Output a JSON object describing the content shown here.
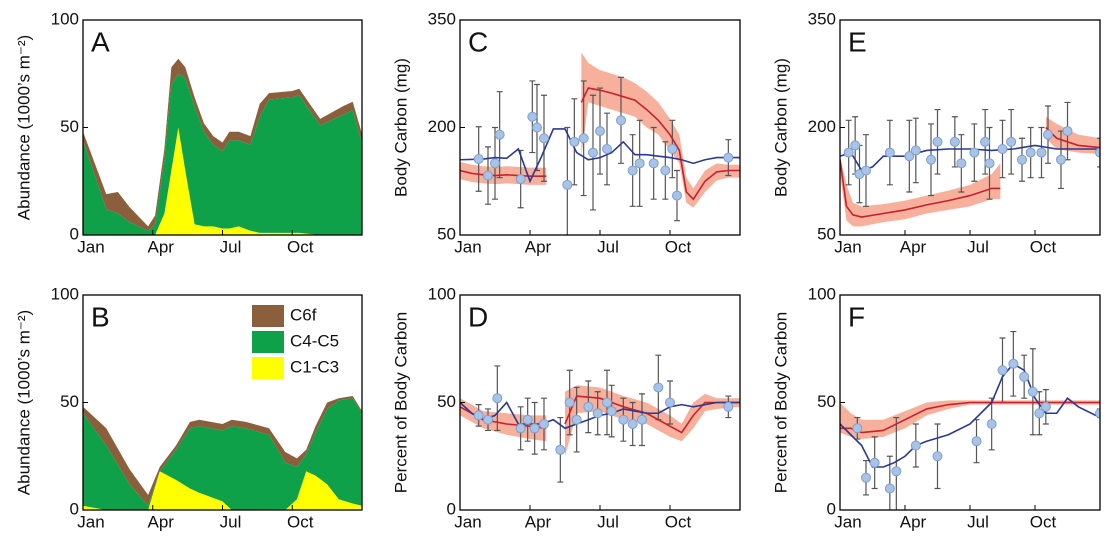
{
  "chart_data": [
    {
      "type": "area",
      "label": "A",
      "ylabel": "Abundance (1000’s m⁻²)",
      "xlim": [
        0,
        12
      ],
      "ylim": [
        0,
        100
      ],
      "yticks": [
        0,
        50,
        100
      ],
      "xticks": [
        {
          "value": 0,
          "label": "Jan"
        },
        {
          "value": 3,
          "label": "Apr"
        },
        {
          "value": 6,
          "label": "Jul"
        },
        {
          "value": 9,
          "label": "Oct"
        }
      ],
      "x": [
        0,
        1,
        1.5,
        2,
        2.8,
        3.1,
        3.5,
        3.8,
        4.1,
        4.4,
        4.8,
        5.2,
        5.6,
        6,
        6.3,
        6.7,
        7.2,
        7.6,
        8,
        9,
        9.3,
        10.2,
        11.2,
        11.6,
        12
      ],
      "series": [
        {
          "name": "C1-C3",
          "color": "#ffff00",
          "values": [
            0,
            0,
            0,
            0,
            0,
            0,
            10,
            30,
            50,
            30,
            5,
            4,
            4,
            3,
            3,
            4,
            2,
            1,
            1,
            1,
            1,
            0,
            0,
            0,
            0
          ]
        },
        {
          "name": "C4-C5",
          "color": "#0fa04a",
          "values": [
            44,
            12,
            10,
            6,
            2,
            5,
            25,
            40,
            25,
            43,
            55,
            44,
            38,
            36,
            41,
            40,
            40,
            54,
            62,
            63,
            64,
            51,
            56,
            58,
            43
          ]
        },
        {
          "name": "C6f",
          "color": "#8b5e3c",
          "values": [
            4,
            7,
            10,
            7,
            2,
            4,
            5,
            8,
            7,
            5,
            4,
            4,
            4,
            4,
            4,
            4,
            4,
            6,
            3,
            3,
            3,
            3,
            4,
            4,
            4
          ]
        }
      ]
    },
    {
      "type": "area",
      "label": "B",
      "ylabel": "Abundance (1000’s m⁻²)",
      "xlim": [
        0,
        12
      ],
      "ylim": [
        0,
        100
      ],
      "yticks": [
        0,
        50,
        100
      ],
      "xticks": [
        {
          "value": 0,
          "label": "Jan"
        },
        {
          "value": 3,
          "label": "Apr"
        },
        {
          "value": 6,
          "label": "Jul"
        },
        {
          "value": 9,
          "label": "Oct"
        }
      ],
      "legend": "upper right",
      "x": [
        0,
        1,
        2,
        2.8,
        3.3,
        4,
        4.6,
        5,
        6,
        6.4,
        7,
        8,
        8.7,
        9.2,
        9.6,
        10,
        10.5,
        11,
        11.6,
        12
      ],
      "series": [
        {
          "name": "C1-C3",
          "color": "#ffff00",
          "values": [
            2,
            0,
            0,
            0,
            18,
            14,
            10,
            8,
            4,
            0,
            0,
            0,
            0,
            5,
            18,
            16,
            12,
            5,
            3,
            2
          ]
        },
        {
          "name": "C4-C5",
          "color": "#0fa04a",
          "values": [
            43,
            30,
            12,
            2,
            0,
            14,
            28,
            31,
            33,
            39,
            38,
            35,
            22,
            15,
            8,
            20,
            35,
            46,
            49,
            43
          ]
        },
        {
          "name": "C6f",
          "color": "#8b5e3c",
          "values": [
            3,
            8,
            7,
            5,
            2,
            2,
            3,
            3,
            3,
            3,
            3,
            3,
            5,
            4,
            2,
            3,
            3,
            1,
            1,
            1
          ]
        }
      ]
    },
    {
      "type": "line",
      "label": "C",
      "ylabel": "Body Carbon (mg)",
      "xlim": [
        0,
        12
      ],
      "ylim": [
        50,
        350
      ],
      "yticks": [
        50,
        200,
        350
      ],
      "xticks": [
        {
          "value": 0,
          "label": "Jan"
        },
        {
          "value": 3,
          "label": "Apr"
        },
        {
          "value": 6,
          "label": "Jul"
        },
        {
          "value": 9,
          "label": "Oct"
        }
      ],
      "series": [
        {
          "color": "#c8202f",
          "band_color": "#f6b09c",
          "x": [
            0,
            0.5,
            1,
            1.5,
            2,
            2.5,
            3,
            3.5,
            3.7,
            4.2,
            5.2,
            5.5,
            6,
            6.5,
            7,
            7.5,
            8,
            8.5,
            9,
            9.4,
            9.7,
            10,
            10.5,
            11,
            11.5,
            12
          ],
          "values": [
            140,
            136,
            134,
            133,
            134,
            133,
            132,
            132,
            132,
            null,
            235,
            255,
            252,
            248,
            243,
            238,
            225,
            210,
            190,
            168,
            110,
            100,
            125,
            138,
            140,
            140
          ],
          "upper": [
            152,
            148,
            146,
            145,
            146,
            145,
            144,
            144,
            144,
            null,
            305,
            290,
            280,
            275,
            270,
            262,
            250,
            235,
            212,
            190,
            130,
            115,
            140,
            150,
            148,
            148
          ],
          "lower": [
            128,
            124,
            122,
            121,
            122,
            121,
            120,
            120,
            120,
            null,
            160,
            235,
            230,
            225,
            220,
            215,
            200,
            190,
            168,
            150,
            95,
            88,
            110,
            126,
            130,
            130
          ]
        },
        {
          "color": "#2b3990",
          "x": [
            0,
            1,
            1.5,
            2,
            2.5,
            3,
            3.5,
            4,
            4.5,
            5,
            5.5,
            6,
            6.5,
            7,
            7.5,
            8,
            8.5,
            9,
            9.5,
            10,
            10.5,
            11,
            12
          ],
          "values": [
            155,
            156,
            158,
            157,
            170,
            125,
            160,
            198,
            198,
            165,
            155,
            158,
            165,
            180,
            162,
            162,
            160,
            158,
            155,
            150,
            155,
            158,
            158
          ]
        }
      ],
      "points": {
        "color": "#a9c3e6",
        "x": [
          0.8,
          1.2,
          1.5,
          1.7,
          2.6,
          3.1,
          3.3,
          3.6,
          4.6,
          4.9,
          5.3,
          5.7,
          6.0,
          6.3,
          6.9,
          7.4,
          7.7,
          8.3,
          8.8,
          9.1,
          9.3,
          11.5
        ],
        "y": [
          156,
          133,
          150,
          190,
          128,
          215,
          200,
          185,
          120,
          180,
          185,
          165,
          195,
          170,
          210,
          140,
          150,
          150,
          140,
          170,
          105,
          158
        ],
        "err": [
          45,
          40,
          50,
          60,
          40,
          50,
          60,
          60,
          80,
          60,
          80,
          80,
          60,
          50,
          60,
          50,
          60,
          50,
          40,
          40,
          35,
          25
        ]
      }
    },
    {
      "type": "line",
      "label": "D",
      "ylabel": "Percent of Body Carbon",
      "xlim": [
        0,
        12
      ],
      "ylim": [
        0,
        100
      ],
      "yticks": [
        0,
        50,
        100
      ],
      "xticks": [
        {
          "value": 0,
          "label": "Jan"
        },
        {
          "value": 3,
          "label": "Apr"
        },
        {
          "value": 6,
          "label": "Jul"
        },
        {
          "value": 9,
          "label": "Oct"
        }
      ],
      "series": [
        {
          "color": "#c8202f",
          "band_color": "#f6b09c",
          "x": [
            0,
            1,
            2,
            3,
            3.7,
            4.1,
            4.5,
            5,
            6,
            7,
            8,
            9,
            9.5,
            10,
            10.5,
            11,
            12
          ],
          "values": [
            48,
            42,
            40,
            39,
            38,
            null,
            40,
            53,
            52,
            48,
            45,
            39,
            36,
            44,
            50,
            50,
            50
          ],
          "upper": [
            52,
            46,
            45,
            44,
            44,
            null,
            55,
            58,
            57,
            53,
            50,
            44,
            40,
            50,
            54,
            52,
            52
          ],
          "lower": [
            44,
            38,
            35,
            33,
            32,
            null,
            25,
            45,
            46,
            42,
            40,
            34,
            32,
            38,
            46,
            47,
            48
          ]
        },
        {
          "color": "#2b3990",
          "x": [
            0,
            0.5,
            1,
            1.5,
            2,
            2.5,
            3,
            3.5,
            4,
            4.5,
            5,
            5.5,
            6,
            6.5,
            7,
            7.5,
            8,
            8.5,
            9,
            9.5,
            10,
            11,
            12
          ],
          "values": [
            50,
            45,
            42,
            44,
            50,
            40,
            40,
            40,
            42,
            38,
            40,
            42,
            44,
            45,
            47,
            46,
            45,
            45,
            48,
            49,
            48,
            50,
            50
          ]
        }
      ],
      "points": {
        "color": "#a9c3e6",
        "x": [
          0.8,
          1.2,
          1.6,
          2.6,
          2.9,
          3.2,
          3.6,
          4.3,
          4.7,
          5.0,
          5.5,
          5.9,
          6.3,
          6.5,
          7.0,
          7.4,
          7.8,
          8.5,
          9.0,
          11.5
        ],
        "y": [
          44,
          42,
          52,
          38,
          42,
          38,
          40,
          28,
          50,
          42,
          48,
          45,
          50,
          46,
          42,
          40,
          42,
          57,
          50,
          48
        ],
        "err": [
          5,
          5,
          15,
          10,
          10,
          12,
          12,
          15,
          15,
          15,
          12,
          10,
          15,
          12,
          10,
          10,
          12,
          15,
          10,
          5
        ]
      }
    },
    {
      "type": "line",
      "label": "E",
      "ylabel": "Body Carbon (mg)",
      "xlim": [
        0,
        12
      ],
      "ylim": [
        50,
        350
      ],
      "yticks": [
        50,
        200,
        350
      ],
      "xticks": [
        {
          "value": 0,
          "label": "Jan"
        },
        {
          "value": 3,
          "label": "Apr"
        },
        {
          "value": 6,
          "label": "Jul"
        },
        {
          "value": 9,
          "label": "Oct"
        }
      ],
      "series": [
        {
          "color": "#c8202f",
          "band_color": "#f6b09c",
          "x": [
            0,
            0.3,
            0.6,
            1,
            2,
            3,
            4,
            5,
            6,
            7,
            7.4,
            8.5,
            9.5,
            10,
            11,
            12
          ],
          "values": [
            155,
            90,
            78,
            75,
            80,
            85,
            92,
            98,
            105,
            115,
            115,
            null,
            200,
            185,
            175,
            172
          ],
          "upper": [
            160,
            120,
            95,
            90,
            93,
            98,
            105,
            112,
            120,
            135,
            150,
            null,
            215,
            205,
            190,
            185
          ],
          "lower": [
            135,
            70,
            62,
            62,
            68,
            72,
            80,
            85,
            90,
            100,
            100,
            null,
            185,
            170,
            165,
            163
          ]
        },
        {
          "color": "#2b3990",
          "x": [
            0,
            0.5,
            1,
            1.5,
            2,
            3,
            4,
            5,
            6,
            7,
            8,
            9,
            10,
            11,
            12
          ],
          "values": [
            160,
            165,
            140,
            145,
            160,
            160,
            168,
            170,
            170,
            168,
            170,
            175,
            170,
            170,
            170
          ]
        }
      ],
      "points": {
        "color": "#a9c3e6",
        "x": [
          0.4,
          0.7,
          0.9,
          1.2,
          2.3,
          3.2,
          3.5,
          4.2,
          4.5,
          5.3,
          5.6,
          6.2,
          6.7,
          6.9,
          7.5,
          7.9,
          8.4,
          8.8,
          9.3,
          9.6,
          10.2,
          10.5,
          12
        ],
        "y": [
          165,
          175,
          135,
          140,
          165,
          160,
          168,
          155,
          180,
          180,
          150,
          165,
          180,
          150,
          170,
          180,
          155,
          165,
          165,
          190,
          155,
          195,
          165
        ],
        "err": [
          45,
          40,
          40,
          50,
          45,
          50,
          45,
          50,
          45,
          35,
          40,
          40,
          45,
          50,
          40,
          45,
          30,
          35,
          35,
          40,
          40,
          40,
          20
        ]
      }
    },
    {
      "type": "line",
      "label": "F",
      "ylabel": "Percent of Body Carbon",
      "xlim": [
        0,
        12
      ],
      "ylim": [
        0,
        100
      ],
      "yticks": [
        0,
        50,
        100
      ],
      "xticks": [
        {
          "value": 0,
          "label": "Jan"
        },
        {
          "value": 3,
          "label": "Apr"
        },
        {
          "value": 6,
          "label": "Jul"
        },
        {
          "value": 9,
          "label": "Oct"
        }
      ],
      "series": [
        {
          "color": "#c8202f",
          "band_color": "#f6b09c",
          "x": [
            0,
            0.5,
            1,
            2,
            3,
            4,
            5,
            6,
            7,
            8,
            9,
            10,
            11,
            12
          ],
          "values": [
            38,
            38,
            36,
            37,
            42,
            47,
            49,
            50,
            50,
            50,
            50,
            50,
            50,
            50
          ],
          "upper": [
            50,
            45,
            42,
            42,
            46,
            50,
            51,
            51,
            51,
            51,
            51,
            51,
            51,
            51
          ],
          "lower": [
            36,
            34,
            33,
            34,
            38,
            44,
            47,
            49,
            49,
            49,
            49,
            49,
            49,
            49
          ]
        },
        {
          "color": "#2b3990",
          "x": [
            0,
            0.5,
            1,
            1.5,
            2,
            2.5,
            3,
            3.5,
            4,
            5,
            6,
            7,
            7.5,
            8,
            8.5,
            9,
            9.5,
            10,
            10.5,
            11,
            12
          ],
          "values": [
            40,
            35,
            30,
            20,
            20,
            22,
            25,
            30,
            32,
            35,
            40,
            50,
            62,
            68,
            65,
            52,
            45,
            45,
            52,
            48,
            43
          ]
        }
      ],
      "points": {
        "color": "#a9c3e6",
        "x": [
          0.8,
          1.2,
          1.6,
          2.3,
          2.6,
          3.5,
          4.5,
          6.3,
          7.0,
          7.5,
          8.0,
          8.5,
          8.9,
          9.2,
          9.5,
          12
        ],
        "y": [
          38,
          15,
          22,
          10,
          18,
          30,
          25,
          32,
          40,
          65,
          68,
          62,
          55,
          45,
          48,
          45
        ],
        "err": [
          5,
          8,
          12,
          15,
          25,
          10,
          15,
          10,
          12,
          15,
          15,
          10,
          20,
          10,
          8,
          2
        ]
      }
    }
  ]
}
